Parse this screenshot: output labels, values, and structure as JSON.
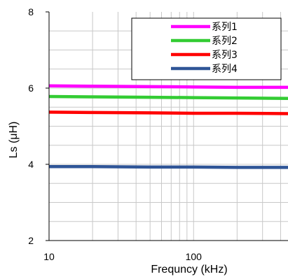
{
  "chart_data": {
    "type": "line",
    "title": "",
    "xlabel": "Frequncy (kHz)",
    "ylabel": "Ls (μH)",
    "x_scale": "log",
    "xlim": [
      10,
      450
    ],
    "ylim": [
      2,
      8
    ],
    "x_ticks": [
      10,
      100
    ],
    "x_tick_labels": [
      "10",
      "100"
    ],
    "y_ticks": [
      2,
      4,
      6,
      8
    ],
    "y_tick_labels": [
      "2",
      "4",
      "6",
      "8"
    ],
    "grid": true,
    "legend_position": "top-right",
    "series": [
      {
        "name": "系列1",
        "color": "#ff00ff",
        "x": [
          10,
          20,
          50,
          100,
          200,
          450
        ],
        "values": [
          6.06,
          6.05,
          6.04,
          6.03,
          6.02,
          6.02
        ]
      },
      {
        "name": "系列2",
        "color": "#33cc33",
        "x": [
          10,
          20,
          50,
          100,
          200,
          450
        ],
        "values": [
          5.78,
          5.77,
          5.76,
          5.75,
          5.74,
          5.73
        ]
      },
      {
        "name": "系列3",
        "color": "#ff0000",
        "x": [
          10,
          20,
          50,
          100,
          200,
          450
        ],
        "values": [
          5.37,
          5.36,
          5.35,
          5.34,
          5.34,
          5.33
        ]
      },
      {
        "name": "系列4",
        "color": "#2f5597",
        "x": [
          10,
          20,
          50,
          100,
          200,
          450
        ],
        "values": [
          3.94,
          3.94,
          3.93,
          3.93,
          3.92,
          3.92
        ]
      }
    ]
  }
}
